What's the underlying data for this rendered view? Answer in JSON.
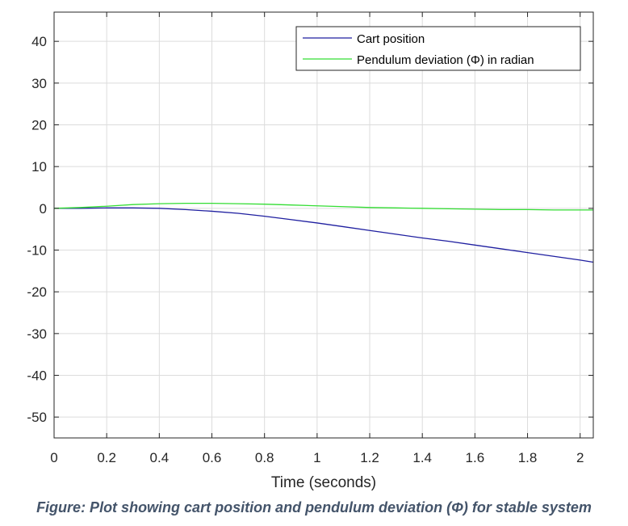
{
  "chart_data": {
    "type": "line",
    "xlabel": "Time (seconds)",
    "ylabel": "",
    "xlim": [
      0,
      2.05
    ],
    "ylim": [
      -55,
      47
    ],
    "x_ticks": [
      0,
      0.2,
      0.4,
      0.6,
      0.8,
      1,
      1.2,
      1.4,
      1.6,
      1.8,
      2
    ],
    "x_tick_labels": [
      "0",
      "0.2",
      "0.4",
      "0.6",
      "0.8",
      "1",
      "1.2",
      "1.4",
      "1.6",
      "1.8",
      "2"
    ],
    "y_ticks": [
      40,
      30,
      20,
      10,
      0,
      -10,
      -20,
      -30,
      -40,
      -50
    ],
    "y_tick_labels": [
      "40",
      "30",
      "20",
      "10",
      "0",
      "-10",
      "-20",
      "-30",
      "-40",
      "-50"
    ],
    "grid": true,
    "legend_position": "top-right",
    "series": [
      {
        "name": "Cart position",
        "color": "#1f1fa0",
        "x": [
          0,
          0.1,
          0.2,
          0.3,
          0.4,
          0.5,
          0.6,
          0.7,
          0.8,
          0.9,
          1.0,
          1.1,
          1.2,
          1.3,
          1.4,
          1.5,
          1.6,
          1.7,
          1.8,
          1.9,
          2.0,
          2.05
        ],
        "y": [
          0,
          0,
          0.1,
          0.1,
          0,
          -0.3,
          -0.7,
          -1.2,
          -1.9,
          -2.7,
          -3.5,
          -4.4,
          -5.3,
          -6.2,
          -7.1,
          -7.9,
          -8.8,
          -9.7,
          -10.6,
          -11.5,
          -12.4,
          -12.9
        ]
      },
      {
        "name": "Pendulum deviation (Φ) in radian",
        "color": "#33dd33",
        "x": [
          0,
          0.1,
          0.2,
          0.3,
          0.4,
          0.5,
          0.6,
          0.7,
          0.8,
          0.9,
          1.0,
          1.1,
          1.2,
          1.3,
          1.4,
          1.5,
          1.6,
          1.7,
          1.8,
          1.9,
          2.0,
          2.05
        ],
        "y": [
          0,
          0.2,
          0.5,
          0.9,
          1.1,
          1.2,
          1.2,
          1.1,
          1.0,
          0.8,
          0.6,
          0.4,
          0.2,
          0.1,
          0,
          -0.1,
          -0.2,
          -0.3,
          -0.3,
          -0.4,
          -0.4,
          -0.4
        ]
      }
    ]
  },
  "caption": "Figure: Plot showing cart position and pendulum deviation (Φ) for stable system"
}
